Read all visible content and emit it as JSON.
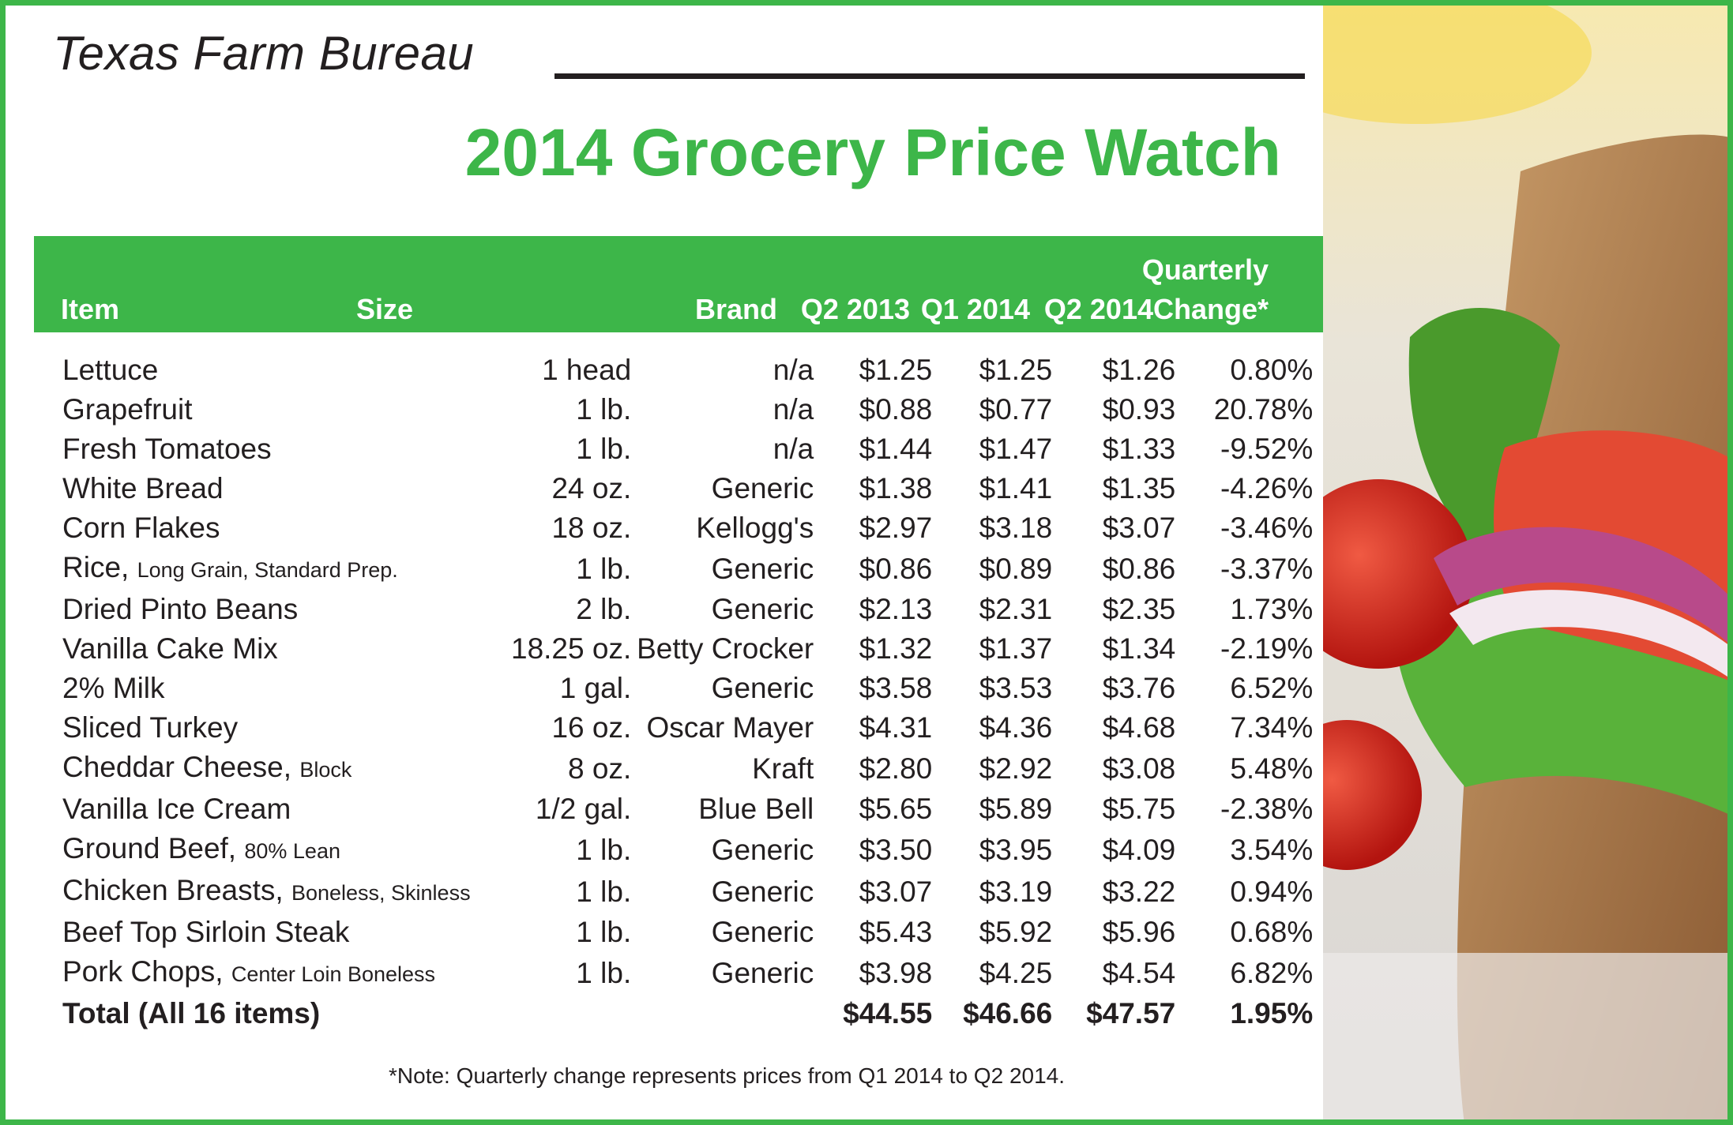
{
  "header": {
    "org": "Texas Farm Bureau",
    "title": "2014 Grocery Price Watch"
  },
  "chart_data": {
    "type": "table",
    "title": "2014 Grocery Price Watch",
    "columns": {
      "item": "Item",
      "size": "Size",
      "brand": "Brand",
      "q2_2013": "Q2 2013",
      "q1_2014": "Q1 2014",
      "q2_2014": "Q2 2014",
      "change_line1": "Quarterly",
      "change_line2": "Change*"
    },
    "rows": [
      {
        "item": "Lettuce",
        "qual": "",
        "size": "1 head",
        "brand": "n/a",
        "q2_2013": "$1.25",
        "q1_2014": "$1.25",
        "q2_2014": "$1.26",
        "change": "0.80%"
      },
      {
        "item": "Grapefruit",
        "qual": "",
        "size": "1 lb.",
        "brand": "n/a",
        "q2_2013": "$0.88",
        "q1_2014": "$0.77",
        "q2_2014": "$0.93",
        "change": "20.78%"
      },
      {
        "item": "Fresh Tomatoes",
        "qual": "",
        "size": "1 lb.",
        "brand": "n/a",
        "q2_2013": "$1.44",
        "q1_2014": "$1.47",
        "q2_2014": "$1.33",
        "change": "-9.52%"
      },
      {
        "item": "White Bread",
        "qual": "",
        "size": "24 oz.",
        "brand": "Generic",
        "q2_2013": "$1.38",
        "q1_2014": "$1.41",
        "q2_2014": "$1.35",
        "change": "-4.26%"
      },
      {
        "item": "Corn Flakes",
        "qual": "",
        "size": "18 oz.",
        "brand": "Kellogg's",
        "q2_2013": "$2.97",
        "q1_2014": "$3.18",
        "q2_2014": "$3.07",
        "change": "-3.46%"
      },
      {
        "item": "Rice,",
        "qual": "Long Grain, Standard Prep.",
        "size": "1 lb.",
        "brand": "Generic",
        "q2_2013": "$0.86",
        "q1_2014": "$0.89",
        "q2_2014": "$0.86",
        "change": "-3.37%"
      },
      {
        "item": "Dried Pinto Beans",
        "qual": "",
        "size": "2 lb.",
        "brand": "Generic",
        "q2_2013": "$2.13",
        "q1_2014": "$2.31",
        "q2_2014": "$2.35",
        "change": "1.73%"
      },
      {
        "item": "Vanilla Cake Mix",
        "qual": "",
        "size": "18.25 oz.",
        "brand": "Betty Crocker",
        "q2_2013": "$1.32",
        "q1_2014": "$1.37",
        "q2_2014": "$1.34",
        "change": "-2.19%"
      },
      {
        "item": "2% Milk",
        "qual": "",
        "size": "1 gal.",
        "brand": "Generic",
        "q2_2013": "$3.58",
        "q1_2014": "$3.53",
        "q2_2014": "$3.76",
        "change": "6.52%"
      },
      {
        "item": "Sliced Turkey",
        "qual": "",
        "size": "16 oz.",
        "brand": "Oscar Mayer",
        "q2_2013": "$4.31",
        "q1_2014": "$4.36",
        "q2_2014": "$4.68",
        "change": "7.34%"
      },
      {
        "item": "Cheddar Cheese,",
        "qual": "Block",
        "size": "8 oz.",
        "brand": "Kraft",
        "q2_2013": "$2.80",
        "q1_2014": "$2.92",
        "q2_2014": "$3.08",
        "change": "5.48%"
      },
      {
        "item": "Vanilla Ice Cream",
        "qual": "",
        "size": "1/2 gal.",
        "brand": "Blue Bell",
        "q2_2013": "$5.65",
        "q1_2014": "$5.89",
        "q2_2014": "$5.75",
        "change": "-2.38%"
      },
      {
        "item": "Ground Beef,",
        "qual": "80% Lean",
        "size": "1 lb.",
        "brand": "Generic",
        "q2_2013": "$3.50",
        "q1_2014": "$3.95",
        "q2_2014": "$4.09",
        "change": "3.54%"
      },
      {
        "item": "Chicken Breasts,",
        "qual": "Boneless, Skinless",
        "size": "1 lb.",
        "brand": "Generic",
        "q2_2013": "$3.07",
        "q1_2014": "$3.19",
        "q2_2014": "$3.22",
        "change": "0.94%"
      },
      {
        "item": "Beef Top Sirloin Steak",
        "qual": "",
        "size": "1 lb.",
        "brand": "Generic",
        "q2_2013": "$5.43",
        "q1_2014": "$5.92",
        "q2_2014": "$5.96",
        "change": "0.68%"
      },
      {
        "item": "Pork Chops,",
        "qual": "Center Loin Boneless",
        "size": "1 lb.",
        "brand": "Generic",
        "q2_2013": "$3.98",
        "q1_2014": "$4.25",
        "q2_2014": "$4.54",
        "change": "6.82%"
      }
    ],
    "total": {
      "item": "Total (All 16 items)",
      "q2_2013": "$44.55",
      "q1_2014": "$46.66",
      "q2_2014": "$47.57",
      "change": "1.95%"
    },
    "note": "*Note: Quarterly change represents prices from Q1 2014 to Q2 2014."
  },
  "colors": {
    "brand_green": "#3db649",
    "text": "#231f20"
  }
}
